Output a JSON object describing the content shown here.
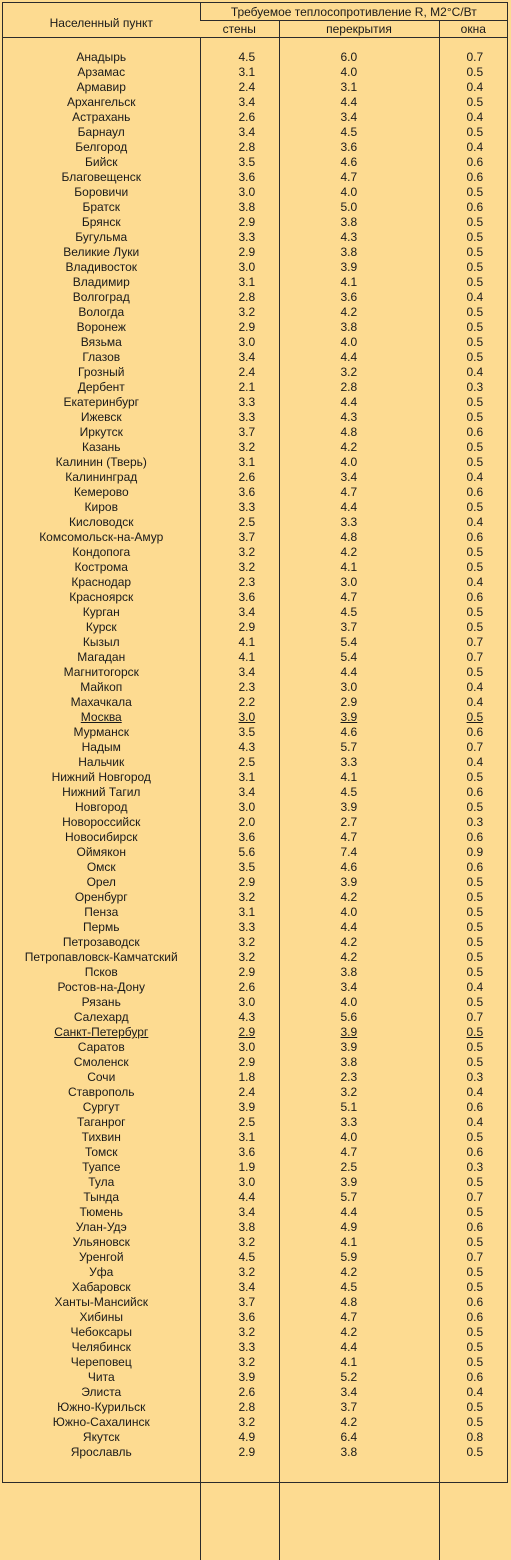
{
  "header": {
    "city_col": "Населенный пункт",
    "group_title": "Требуемое теплосопротивление R, М2°С/Вт",
    "walls": "стены",
    "roof": "перекрытия",
    "windows": "окна"
  },
  "rows": [
    {
      "city": "Анадырь",
      "walls": "4.5",
      "roof": "6.0",
      "windows": "0.7"
    },
    {
      "city": "Арзамас",
      "walls": "3.1",
      "roof": "4.0",
      "windows": "0.5"
    },
    {
      "city": "Армавир",
      "walls": "2.4",
      "roof": "3.1",
      "windows": "0.4"
    },
    {
      "city": "Архангельск",
      "walls": "3.4",
      "roof": "4.4",
      "windows": "0.5"
    },
    {
      "city": "Астрахань",
      "walls": "2.6",
      "roof": "3.4",
      "windows": "0.4"
    },
    {
      "city": "Барнаул",
      "walls": "3.4",
      "roof": "4.5",
      "windows": "0.5"
    },
    {
      "city": "Белгород",
      "walls": "2.8",
      "roof": "3.6",
      "windows": "0.4"
    },
    {
      "city": "Бийск",
      "walls": "3.5",
      "roof": "4.6",
      "windows": "0.6"
    },
    {
      "city": "Благовещенск",
      "walls": "3.6",
      "roof": "4.7",
      "windows": "0.6"
    },
    {
      "city": "Боровичи",
      "walls": "3.0",
      "roof": "4.0",
      "windows": "0.5"
    },
    {
      "city": "Братск",
      "walls": "3.8",
      "roof": "5.0",
      "windows": "0.6"
    },
    {
      "city": "Брянск",
      "walls": "2.9",
      "roof": "3.8",
      "windows": "0.5"
    },
    {
      "city": "Бугульма",
      "walls": "3.3",
      "roof": "4.3",
      "windows": "0.5"
    },
    {
      "city": "Великие Луки",
      "walls": "2.9",
      "roof": "3.8",
      "windows": "0.5"
    },
    {
      "city": "Владивосток",
      "walls": "3.0",
      "roof": "3.9",
      "windows": "0.5"
    },
    {
      "city": "Владимир",
      "walls": "3.1",
      "roof": "4.1",
      "windows": "0.5"
    },
    {
      "city": "Волгоград",
      "walls": "2.8",
      "roof": "3.6",
      "windows": "0.4"
    },
    {
      "city": "Вологда",
      "walls": "3.2",
      "roof": "4.2",
      "windows": "0.5"
    },
    {
      "city": "Воронеж",
      "walls": "2.9",
      "roof": "3.8",
      "windows": "0.5"
    },
    {
      "city": "Вязьма",
      "walls": "3.0",
      "roof": "4.0",
      "windows": "0.5"
    },
    {
      "city": "Глазов",
      "walls": "3.4",
      "roof": "4.4",
      "windows": "0.5"
    },
    {
      "city": "Грозный",
      "walls": "2.4",
      "roof": "3.2",
      "windows": "0.4"
    },
    {
      "city": "Дербент",
      "walls": "2.1",
      "roof": "2.8",
      "windows": "0.3"
    },
    {
      "city": "Екатеринбург",
      "walls": "3.3",
      "roof": "4.4",
      "windows": "0.5"
    },
    {
      "city": "Ижевск",
      "walls": "3.3",
      "roof": "4.3",
      "windows": "0.5"
    },
    {
      "city": "Иркутск",
      "walls": "3.7",
      "roof": "4.8",
      "windows": "0.6"
    },
    {
      "city": "Казань",
      "walls": "3.2",
      "roof": "4.2",
      "windows": "0.5"
    },
    {
      "city": "Калинин (Тверь)",
      "walls": "3.1",
      "roof": "4.0",
      "windows": "0.5"
    },
    {
      "city": "Калининград",
      "walls": "2.6",
      "roof": "3.4",
      "windows": "0.4"
    },
    {
      "city": "Кемерово",
      "walls": "3.6",
      "roof": "4.7",
      "windows": "0.6"
    },
    {
      "city": "Киров",
      "walls": "3.3",
      "roof": "4.4",
      "windows": "0.5"
    },
    {
      "city": "Кисловодск",
      "walls": "2.5",
      "roof": "3.3",
      "windows": "0.4"
    },
    {
      "city": "Комсомольск-на-Амур",
      "walls": "3.7",
      "roof": "4.8",
      "windows": "0.6"
    },
    {
      "city": "Кондопога",
      "walls": "3.2",
      "roof": "4.2",
      "windows": "0.5"
    },
    {
      "city": "Кострома",
      "walls": "3.2",
      "roof": "4.1",
      "windows": "0.5"
    },
    {
      "city": "Краснодар",
      "walls": "2.3",
      "roof": "3.0",
      "windows": "0.4"
    },
    {
      "city": "Красноярск",
      "walls": "3.6",
      "roof": "4.7",
      "windows": "0.6"
    },
    {
      "city": "Курган",
      "walls": "3.4",
      "roof": "4.5",
      "windows": "0.5"
    },
    {
      "city": "Курск",
      "walls": "2.9",
      "roof": "3.7",
      "windows": "0.5"
    },
    {
      "city": "Кызыл",
      "walls": "4.1",
      "roof": "5.4",
      "windows": "0.7"
    },
    {
      "city": "Магадан",
      "walls": "4.1",
      "roof": "5.4",
      "windows": "0.7"
    },
    {
      "city": "Магнитогорск",
      "walls": "3.4",
      "roof": "4.4",
      "windows": "0.5"
    },
    {
      "city": "Майкоп",
      "walls": "2.3",
      "roof": "3.0",
      "windows": "0.4"
    },
    {
      "city": "Махачкала",
      "walls": "2.2",
      "roof": "2.9",
      "windows": "0.4"
    },
    {
      "city": "Москва",
      "walls": "3.0",
      "roof": "3.9",
      "windows": "0.5",
      "underline": true
    },
    {
      "city": "Мурманск",
      "walls": "3.5",
      "roof": "4.6",
      "windows": "0.6"
    },
    {
      "city": "Надым",
      "walls": "4.3",
      "roof": "5.7",
      "windows": "0.7"
    },
    {
      "city": "Нальчик",
      "walls": "2.5",
      "roof": "3.3",
      "windows": "0.4"
    },
    {
      "city": "Нижний Новгород",
      "walls": "3.1",
      "roof": "4.1",
      "windows": "0.5"
    },
    {
      "city": "Нижний Тагил",
      "walls": "3.4",
      "roof": "4.5",
      "windows": "0.6"
    },
    {
      "city": "Новгород",
      "walls": "3.0",
      "roof": "3.9",
      "windows": "0.5"
    },
    {
      "city": "Новороссийск",
      "walls": "2.0",
      "roof": "2.7",
      "windows": "0.3"
    },
    {
      "city": "Новосибирск",
      "walls": "3.6",
      "roof": "4.7",
      "windows": "0.6"
    },
    {
      "city": "Оймякон",
      "walls": "5.6",
      "roof": "7.4",
      "windows": "0.9"
    },
    {
      "city": "Омск",
      "walls": "3.5",
      "roof": "4.6",
      "windows": "0.6"
    },
    {
      "city": "Орел",
      "walls": "2.9",
      "roof": "3.9",
      "windows": "0.5"
    },
    {
      "city": "Оренбург",
      "walls": "3.2",
      "roof": "4.2",
      "windows": "0.5"
    },
    {
      "city": "Пенза",
      "walls": "3.1",
      "roof": "4.0",
      "windows": "0.5"
    },
    {
      "city": "Пермь",
      "walls": "3.3",
      "roof": "4.4",
      "windows": "0.5"
    },
    {
      "city": "Петрозаводск",
      "walls": "3.2",
      "roof": "4.2",
      "windows": "0.5"
    },
    {
      "city": "Петропавловск-Камчатский",
      "walls": "3.2",
      "roof": "4.2",
      "windows": "0.5"
    },
    {
      "city": "Псков",
      "walls": "2.9",
      "roof": "3.8",
      "windows": "0.5"
    },
    {
      "city": "Ростов-на-Дону",
      "walls": "2.6",
      "roof": "3.4",
      "windows": "0.4"
    },
    {
      "city": "Рязань",
      "walls": "3.0",
      "roof": "4.0",
      "windows": "0.5"
    },
    {
      "city": "Салехард",
      "walls": "4.3",
      "roof": "5.6",
      "windows": "0.7"
    },
    {
      "city": "Санкт-Петербург",
      "walls": "2.9",
      "roof": "3.9",
      "windows": "0.5",
      "underline": true
    },
    {
      "city": "Саратов",
      "walls": "3.0",
      "roof": "3.9",
      "windows": "0.5"
    },
    {
      "city": "Смоленск",
      "walls": "2.9",
      "roof": "3.8",
      "windows": "0.5"
    },
    {
      "city": "Сочи",
      "walls": "1.8",
      "roof": "2.3",
      "windows": "0.3"
    },
    {
      "city": "Ставрополь",
      "walls": "2.4",
      "roof": "3.2",
      "windows": "0.4"
    },
    {
      "city": "Сургут",
      "walls": "3.9",
      "roof": "5.1",
      "windows": "0.6"
    },
    {
      "city": "Таганрог",
      "walls": "2.5",
      "roof": "3.3",
      "windows": "0.4"
    },
    {
      "city": "Тихвин",
      "walls": "3.1",
      "roof": "4.0",
      "windows": "0.5"
    },
    {
      "city": "Томск",
      "walls": "3.6",
      "roof": "4.7",
      "windows": "0.6"
    },
    {
      "city": "Туапсе",
      "walls": "1.9",
      "roof": "2.5",
      "windows": "0.3"
    },
    {
      "city": "Тула",
      "walls": "3.0",
      "roof": "3.9",
      "windows": "0.5"
    },
    {
      "city": "Тында",
      "walls": "4.4",
      "roof": "5.7",
      "windows": "0.7"
    },
    {
      "city": "Тюмень",
      "walls": "3.4",
      "roof": "4.4",
      "windows": "0.5"
    },
    {
      "city": "Улан-Удэ",
      "walls": "3.8",
      "roof": "4.9",
      "windows": "0.6"
    },
    {
      "city": "Ульяновск",
      "walls": "3.2",
      "roof": "4.1",
      "windows": "0.5"
    },
    {
      "city": "Уренгой",
      "walls": "4.5",
      "roof": "5.9",
      "windows": "0.7"
    },
    {
      "city": "Уфа",
      "walls": "3.2",
      "roof": "4.2",
      "windows": "0.5"
    },
    {
      "city": "Хабаровск",
      "walls": "3.4",
      "roof": "4.5",
      "windows": "0.5"
    },
    {
      "city": "Ханты-Мансийск",
      "walls": "3.7",
      "roof": "4.8",
      "windows": "0.6"
    },
    {
      "city": "Хибины",
      "walls": "3.6",
      "roof": "4.7",
      "windows": "0.6"
    },
    {
      "city": "Чебоксары",
      "walls": "3.2",
      "roof": "4.2",
      "windows": "0.5"
    },
    {
      "city": "Челябинск",
      "walls": "3.3",
      "roof": "4.4",
      "windows": "0.5"
    },
    {
      "city": "Череповец",
      "walls": "3.2",
      "roof": "4.1",
      "windows": "0.5"
    },
    {
      "city": "Чита",
      "walls": "3.9",
      "roof": "5.2",
      "windows": "0.6"
    },
    {
      "city": "Элиста",
      "walls": "2.6",
      "roof": "3.4",
      "windows": "0.4"
    },
    {
      "city": "Южно-Курильск",
      "walls": "2.8",
      "roof": "3.7",
      "windows": "0.5"
    },
    {
      "city": "Южно-Сахалинск",
      "walls": "3.2",
      "roof": "4.2",
      "windows": "0.5"
    },
    {
      "city": "Якутск",
      "walls": "4.9",
      "roof": "6.4",
      "windows": "0.8"
    },
    {
      "city": "Ярославль",
      "walls": "2.9",
      "roof": "3.8",
      "windows": "0.5"
    }
  ]
}
